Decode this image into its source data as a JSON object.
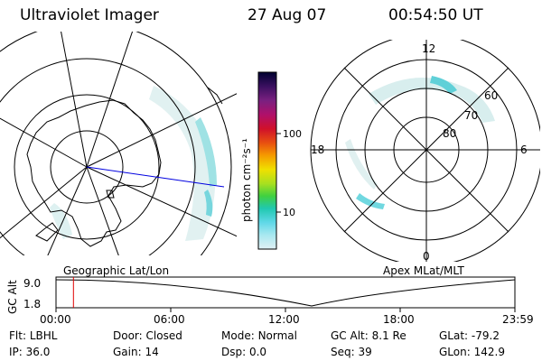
{
  "header": {
    "title": "Ultraviolet Imager",
    "date": "27 Aug 07",
    "time": "00:54:50 UT"
  },
  "colorbar": {
    "unit_label": "photon cm⁻²s⁻¹",
    "ticks": [
      "100",
      "10"
    ],
    "colors": [
      "#000030",
      "#3a1060",
      "#7a2080",
      "#b0106a",
      "#d0102a",
      "#e85010",
      "#f59a00",
      "#f0e000",
      "#a8e020",
      "#40d040",
      "#20c8b0",
      "#60d8e8",
      "#a8e8f0",
      "#e0f0f4"
    ]
  },
  "left_map": {
    "caption": "Geographic Lat/Lon"
  },
  "right_map": {
    "caption": "Apex MLat/MLT",
    "mlt_labels": {
      "top": "12",
      "left": "18",
      "right": "6",
      "bottom": "0"
    },
    "lat_labels": [
      "60",
      "70",
      "80"
    ]
  },
  "timeline": {
    "ylabel": "GC Alt",
    "yticks": [
      "9.0",
      "1.8"
    ],
    "xticks": [
      "00:00",
      "06:00",
      "12:00",
      "18:00",
      "23:59"
    ],
    "current_time_fraction": 0.038
  },
  "info": {
    "row1": [
      {
        "label": "Flt:",
        "value": "LBHL"
      },
      {
        "label": "Door:",
        "value": "Closed"
      },
      {
        "label": "Mode:",
        "value": "Normal"
      },
      {
        "label": "GC Alt:",
        "value": "8.1 Re"
      },
      {
        "label": "GLat:",
        "value": "-79.2"
      }
    ],
    "row2": [
      {
        "label": "IP:",
        "value": "36.0"
      },
      {
        "label": "Gain:",
        "value": "14"
      },
      {
        "label": "Dsp:",
        "value": "0.0"
      },
      {
        "label": "Seq:",
        "value": "39"
      },
      {
        "label": "GLon:",
        "value": "142.9"
      }
    ]
  }
}
